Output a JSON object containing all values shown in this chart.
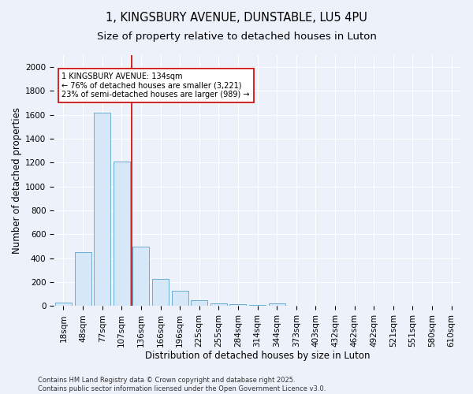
{
  "title1": "1, KINGSBURY AVENUE, DUNSTABLE, LU5 4PU",
  "title2": "Size of property relative to detached houses in Luton",
  "xlabel": "Distribution of detached houses by size in Luton",
  "ylabel": "Number of detached properties",
  "categories": [
    "18sqm",
    "48sqm",
    "77sqm",
    "107sqm",
    "136sqm",
    "166sqm",
    "196sqm",
    "225sqm",
    "255sqm",
    "284sqm",
    "314sqm",
    "344sqm",
    "373sqm",
    "403sqm",
    "432sqm",
    "462sqm",
    "492sqm",
    "521sqm",
    "551sqm",
    "580sqm",
    "610sqm"
  ],
  "values": [
    30,
    450,
    1620,
    1210,
    500,
    225,
    130,
    50,
    25,
    15,
    10,
    20,
    0,
    0,
    0,
    0,
    0,
    0,
    0,
    0,
    0
  ],
  "bar_color": "#d6e8f7",
  "bar_edge_color": "#6aaed6",
  "vline_x": 3.5,
  "vline_color": "#cc0000",
  "annotation_line1": "1 KINGSBURY AVENUE: 134sqm",
  "annotation_line2": "← 76% of detached houses are smaller (3,221)",
  "annotation_line3": "23% of semi-detached houses are larger (989) →",
  "annotation_box_color": "#ffffff",
  "annotation_box_edge": "#cc0000",
  "ylim": [
    0,
    2100
  ],
  "yticks": [
    0,
    200,
    400,
    600,
    800,
    1000,
    1200,
    1400,
    1600,
    1800,
    2000
  ],
  "footer1": "Contains HM Land Registry data © Crown copyright and database right 2025.",
  "footer2": "Contains public sector information licensed under the Open Government Licence v3.0.",
  "background_color": "#edf2fa",
  "grid_color": "#ffffff",
  "title_fontsize": 10.5,
  "subtitle_fontsize": 9.5,
  "axis_label_fontsize": 8.5,
  "tick_fontsize": 7.5,
  "annotation_fontsize": 7,
  "footer_fontsize": 6
}
